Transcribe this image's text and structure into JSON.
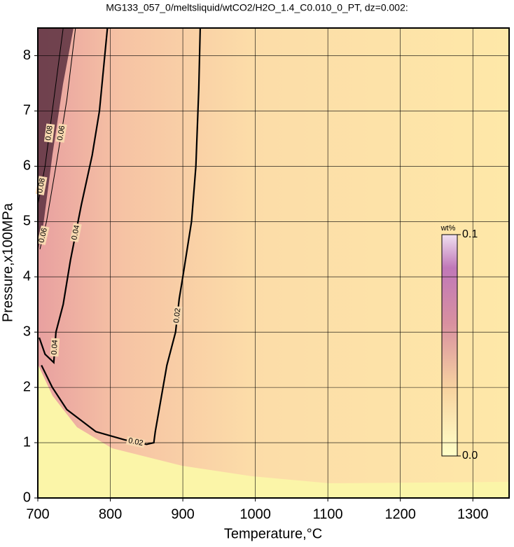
{
  "chart_data": {
    "type": "contour",
    "title": "MG133_057_0/meltsliquid/wtCO2/H2O_1.4_C0.010_0_PT, dz=0.002:",
    "xlabel": "Temperature,°C",
    "ylabel": "Pressure,x100MPa",
    "xlim": [
      700,
      1350
    ],
    "ylim": [
      0,
      8.5
    ],
    "xticks": [
      700,
      800,
      900,
      1000,
      1100,
      1200,
      1300
    ],
    "yticks": [
      0,
      1,
      2,
      3,
      4,
      5,
      6,
      7,
      8
    ],
    "grid": true,
    "contours": [
      {
        "level": 0.02,
        "thick": true,
        "x": [
          924,
          922,
          918,
          912,
          906,
          900,
          895,
          890,
          878,
          870,
          862,
          860,
          850,
          820,
          780,
          740,
          720,
          705
        ],
        "y": [
          8.5,
          7.4,
          6,
          5,
          4.5,
          4,
          3.6,
          3,
          2.4,
          1.8,
          1.2,
          1.0,
          0.97,
          1.05,
          1.2,
          1.6,
          2.0,
          2.4
        ]
      },
      {
        "level": 0.04,
        "thick": true,
        "x": [
          796,
          785,
          775,
          760,
          745,
          735,
          725,
          722,
          710,
          702
        ],
        "y": [
          8.5,
          7,
          6.2,
          5.3,
          4.3,
          3.5,
          3,
          2.45,
          2.6,
          2.9
        ]
      },
      {
        "level": 0.06,
        "thick": false,
        "x": [
          752,
          740,
          725,
          712,
          703
        ],
        "y": [
          8.5,
          7.2,
          6,
          5,
          4.5
        ]
      },
      {
        "level": 0.08,
        "thick": false,
        "x": [
          735,
          722,
          710,
          700
        ],
        "y": [
          8.5,
          7.2,
          6,
          5.3
        ]
      }
    ],
    "colorbar": {
      "label": "wt%",
      "lim": [
        0,
        0.1
      ],
      "ticks": [
        {
          "value": 0,
          "label": "0.0"
        },
        {
          "value": 0.1,
          "label": "0.1"
        }
      ]
    }
  }
}
